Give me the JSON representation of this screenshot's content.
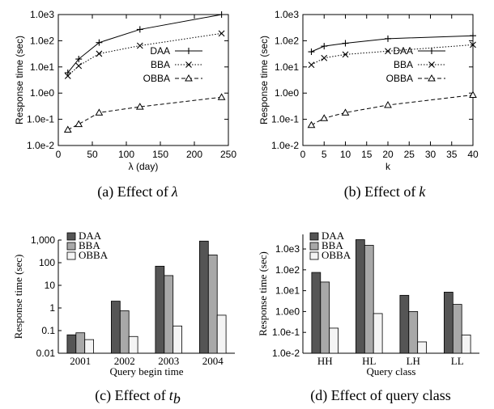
{
  "chart_data": [
    {
      "id": "a",
      "type": "line",
      "caption": "(a) Effect of",
      "caption_math": "λ",
      "xlabel": "λ (day)",
      "ylabel": "Response time (sec)",
      "yscale": "log",
      "xlim": [
        0,
        250
      ],
      "ylim": [
        0.01,
        1000
      ],
      "xticks": [
        "0",
        "50",
        "100",
        "150",
        "200",
        "250"
      ],
      "yticks": [
        "1.0e-2",
        "1.0e-1",
        "1.0e0",
        "1.0e1",
        "1.0e2",
        "1.0e3"
      ],
      "legend_position": "center-right",
      "x": [
        14,
        30,
        60,
        120,
        240
      ],
      "series": [
        {
          "name": "DAA",
          "values": [
            6,
            20,
            85,
            270,
            1000
          ],
          "marker": "plus",
          "dash": "solid"
        },
        {
          "name": "BBA",
          "values": [
            4.5,
            11,
            32,
            65,
            190
          ],
          "marker": "cross",
          "dash": "dotted"
        },
        {
          "name": "OBBA",
          "values": [
            0.04,
            0.065,
            0.18,
            0.3,
            0.7
          ],
          "marker": "triangle",
          "dash": "dashed"
        }
      ]
    },
    {
      "id": "b",
      "type": "line",
      "caption": "(b) Effect of",
      "caption_math": "k",
      "xlabel": "k",
      "ylabel": "Response time (sec)",
      "yscale": "log",
      "xlim": [
        0,
        40
      ],
      "ylim": [
        0.01,
        1000
      ],
      "xticks": [
        "0",
        "5",
        "10",
        "15",
        "20",
        "25",
        "30",
        "35",
        "40"
      ],
      "yticks": [
        "1.0e-2",
        "1.0e-1",
        "1.0e0",
        "1.0e1",
        "1.0e2",
        "1.0e3"
      ],
      "legend_position": "center-right",
      "x": [
        2,
        5,
        10,
        20,
        40
      ],
      "series": [
        {
          "name": "DAA",
          "values": [
            38,
            62,
            80,
            120,
            155
          ],
          "marker": "plus",
          "dash": "solid"
        },
        {
          "name": "BBA",
          "values": [
            12,
            22,
            30,
            40,
            70
          ],
          "marker": "cross",
          "dash": "dotted"
        },
        {
          "name": "OBBA",
          "values": [
            0.06,
            0.11,
            0.18,
            0.35,
            0.85
          ],
          "marker": "triangle",
          "dash": "dashed"
        }
      ]
    },
    {
      "id": "c",
      "type": "bar",
      "caption": "(c) Effect of",
      "caption_math": "t",
      "caption_sub": "b",
      "xlabel": "Query begin time",
      "ylabel": "Response time (sec)",
      "yscale": "log",
      "ylim": [
        0.01,
        1000
      ],
      "yticks": [
        "0.01",
        "0.1",
        "1",
        "10",
        "100",
        "1,000"
      ],
      "legend_position": "top-left",
      "categories": [
        "2001",
        "2002",
        "2003",
        "2004"
      ],
      "series": [
        {
          "name": "DAA",
          "values": [
            0.065,
            2,
            70,
            900
          ],
          "color": "#555555"
        },
        {
          "name": "BBA",
          "values": [
            0.08,
            0.75,
            27,
            220
          ],
          "color": "#a8a8a8"
        },
        {
          "name": "OBBA",
          "values": [
            0.04,
            0.055,
            0.16,
            0.48
          ],
          "color": "#f4f4f4"
        }
      ]
    },
    {
      "id": "d",
      "type": "bar",
      "caption": "(d) Effect of query class",
      "xlabel": "Query class",
      "ylabel": "Response time (sec)",
      "yscale": "log",
      "ylim": [
        0.01,
        5000
      ],
      "yticks": [
        "1.0e-2",
        "1.0e-1",
        "1.0e0",
        "1.0e1",
        "1.0e2",
        "1.0e3"
      ],
      "legend_position": "top-left",
      "categories": [
        "HH",
        "HL",
        "LH",
        "LL"
      ],
      "series": [
        {
          "name": "DAA",
          "values": [
            75,
            2800,
            6,
            8.5
          ],
          "color": "#555555"
        },
        {
          "name": "BBA",
          "values": [
            26,
            1500,
            1,
            2.2
          ],
          "color": "#a8a8a8"
        },
        {
          "name": "OBBA",
          "values": [
            0.16,
            0.8,
            0.035,
            0.075
          ],
          "color": "#f4f4f4"
        }
      ]
    }
  ]
}
